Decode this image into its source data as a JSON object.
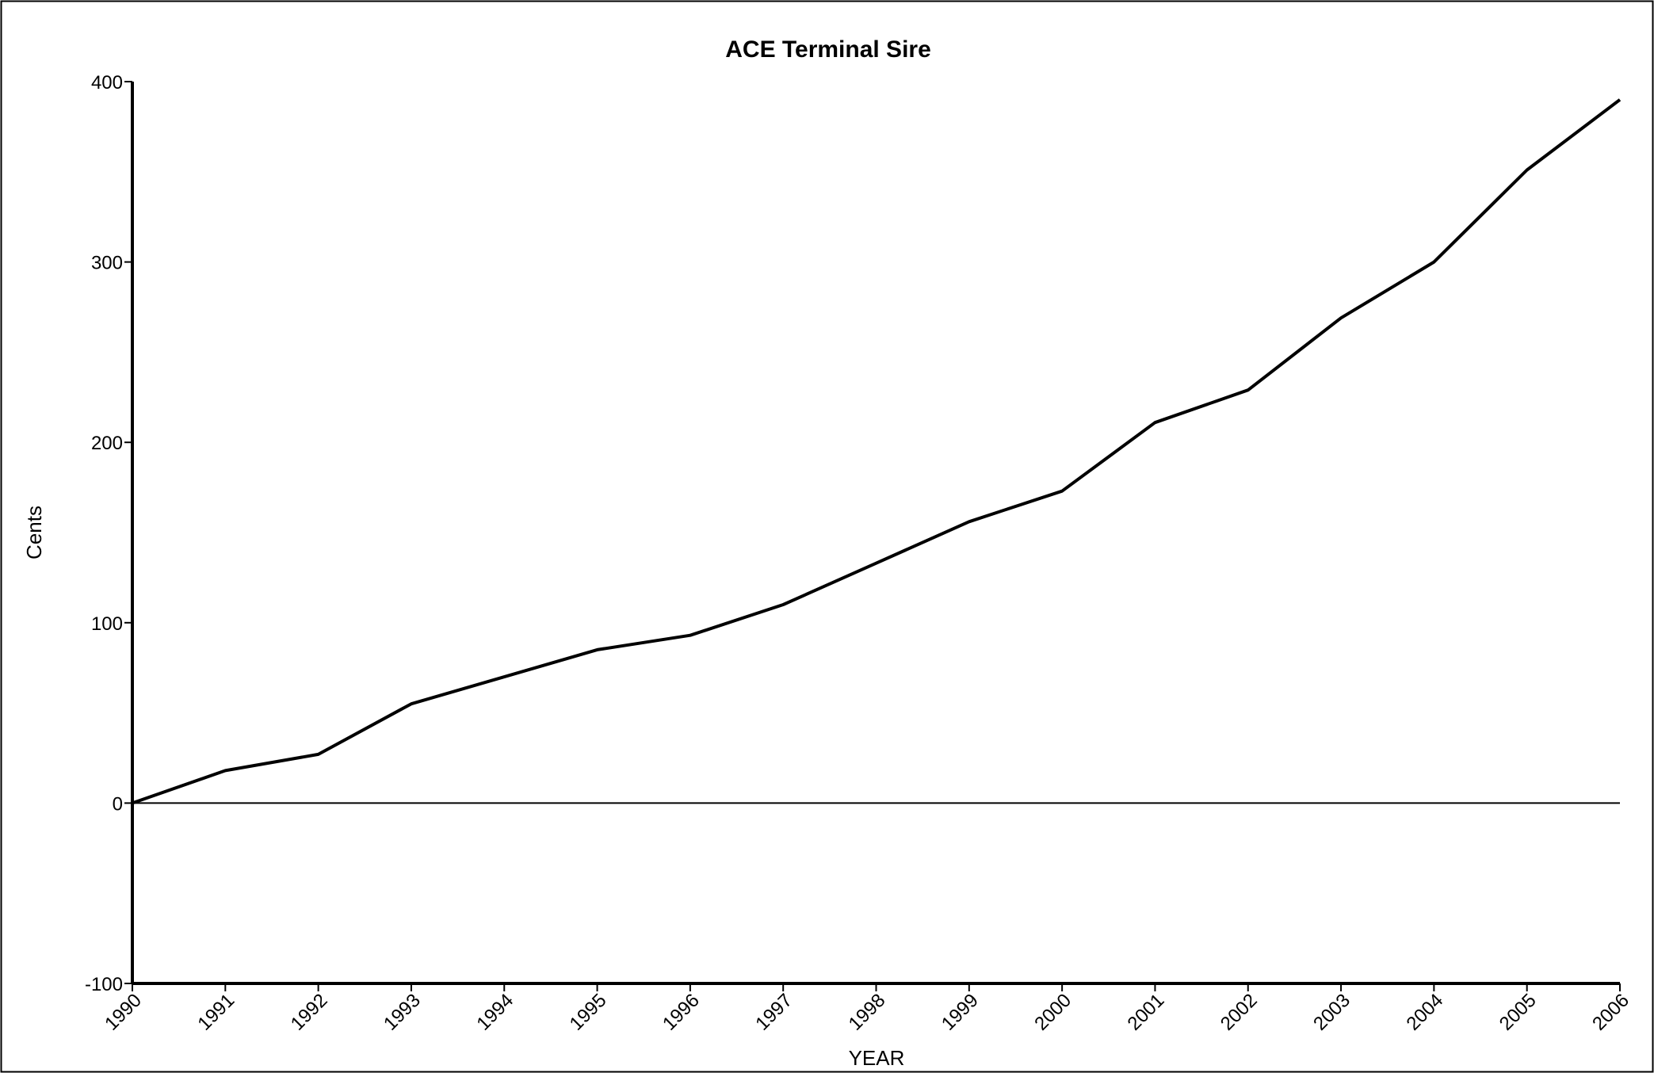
{
  "chart_data": {
    "type": "line",
    "title": "ACE Terminal Sire",
    "xlabel": "YEAR",
    "ylabel": "Cents",
    "x": [
      "1990",
      "1991",
      "1992",
      "1993",
      "1994",
      "1995",
      "1996",
      "1997",
      "1998",
      "1999",
      "2000",
      "2001",
      "2002",
      "2003",
      "2004",
      "2005",
      "2006"
    ],
    "series": [
      {
        "values": [
          0,
          18,
          27,
          55,
          70,
          85,
          93,
          110,
          133,
          156,
          173,
          211,
          229,
          269,
          300,
          351,
          390
        ]
      }
    ],
    "yticks": [
      -100,
      0,
      100,
      200,
      300,
      400
    ],
    "ylim": [
      -100,
      400
    ],
    "grid": false,
    "line_color": "#000000"
  }
}
